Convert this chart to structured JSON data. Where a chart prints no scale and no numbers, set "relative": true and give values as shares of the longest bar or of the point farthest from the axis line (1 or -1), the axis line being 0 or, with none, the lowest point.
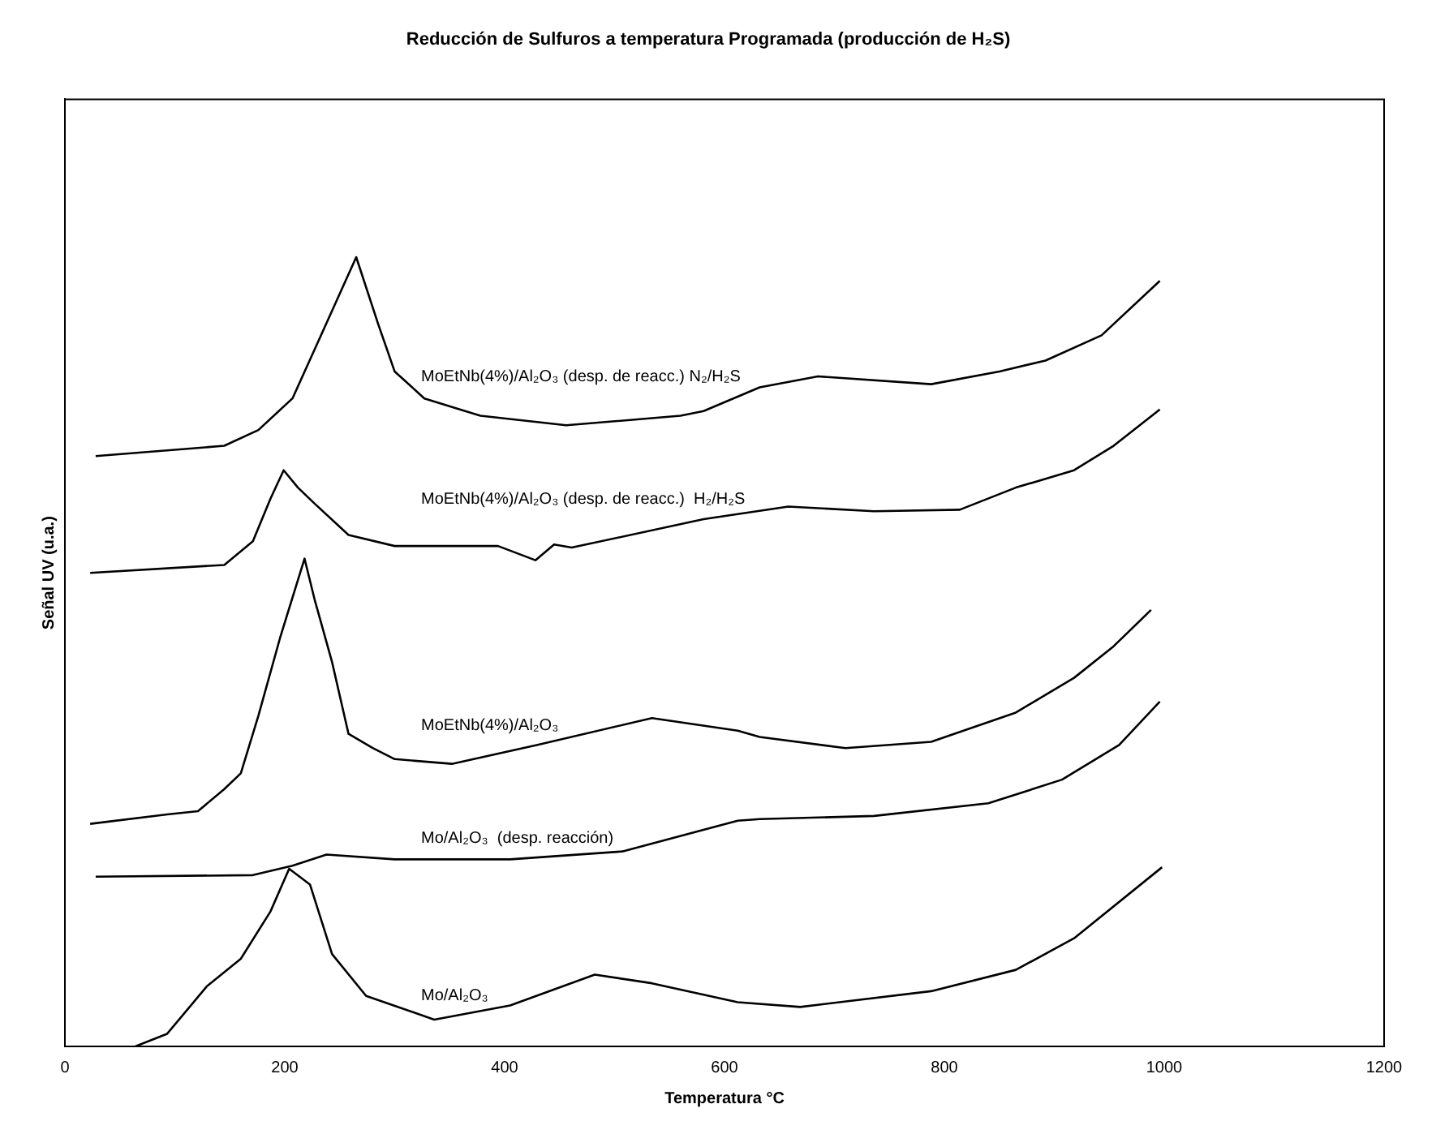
{
  "chart_data": {
    "type": "line",
    "title": "Reducción de Sulfuros a temperatura Programada (producción de H₂S)",
    "xlabel": "Temperatura °C",
    "ylabel": "Señal UV (u.a.)",
    "relative": true,
    "xlim": [
      0,
      1200
    ],
    "xticks": [
      0,
      200,
      400,
      600,
      800,
      1000,
      1200
    ],
    "grid": false,
    "legend": false,
    "marker": "none",
    "line_style": "solid",
    "series": [
      {
        "name": "MoEtNb(4%)/Al₂O₃ (desp. de reacc.) N₂/H₂S",
        "color": "#000000",
        "x": [
          28,
          145,
          176,
          207,
          233,
          265,
          285,
          300,
          327,
          378,
          456,
          560,
          581,
          632,
          685,
          788,
          850,
          892,
          943,
          996
        ],
        "values": [
          0.748,
          0.761,
          0.781,
          0.821,
          0.901,
          1.0,
          0.915,
          0.855,
          0.821,
          0.799,
          0.787,
          0.799,
          0.805,
          0.835,
          0.849,
          0.839,
          0.855,
          0.869,
          0.901,
          0.97
        ]
      },
      {
        "name": "MoEtNb(4%)/Al₂O₃ (desp. de reacc.)  H₂/H₂S",
        "color": "#000000",
        "x": [
          23,
          145,
          171,
          187,
          199,
          212,
          227,
          258,
          300,
          394,
          428,
          445,
          461,
          581,
          658,
          736,
          814,
          865,
          918,
          954,
          996
        ],
        "values": [
          0.6,
          0.61,
          0.64,
          0.694,
          0.73,
          0.708,
          0.688,
          0.648,
          0.634,
          0.634,
          0.616,
          0.636,
          0.632,
          0.668,
          0.684,
          0.678,
          0.68,
          0.708,
          0.73,
          0.761,
          0.807
        ]
      },
      {
        "name": "MoEtNb(4%)/Al₂O₃",
        "color": "#000000",
        "x": [
          23,
          93,
          121,
          145,
          160,
          176,
          196,
          218,
          227,
          243,
          258,
          280,
          300,
          352,
          430,
          534,
          612,
          632,
          710,
          788,
          865,
          918,
          954,
          988
        ],
        "values": [
          0.282,
          0.294,
          0.298,
          0.326,
          0.346,
          0.419,
          0.519,
          0.618,
          0.567,
          0.487,
          0.396,
          0.378,
          0.364,
          0.358,
          0.382,
          0.416,
          0.4,
          0.392,
          0.378,
          0.386,
          0.423,
          0.467,
          0.507,
          0.553
        ]
      },
      {
        "name": "Mo/Al₂O₃  (desp. reacción)",
        "color": "#000000",
        "x": [
          28,
          171,
          207,
          238,
          300,
          405,
          507,
          612,
          632,
          736,
          840,
          907,
          959,
          996
        ],
        "values": [
          0.215,
          0.217,
          0.229,
          0.243,
          0.237,
          0.237,
          0.247,
          0.286,
          0.288,
          0.292,
          0.308,
          0.338,
          0.382,
          0.437
        ]
      },
      {
        "name": "Mo/Al₂O₃",
        "color": "#000000",
        "x": [
          64,
          93,
          129,
          160,
          187,
          204,
          223,
          243,
          274,
          336,
          405,
          482,
          534,
          612,
          669,
          788,
          865,
          918,
          998
        ],
        "values": [
          0,
          0.016,
          0.076,
          0.111,
          0.171,
          0.225,
          0.205,
          0.117,
          0.064,
          0.034,
          0.052,
          0.091,
          0.08,
          0.056,
          0.05,
          0.07,
          0.097,
          0.137,
          0.227
        ]
      }
    ]
  }
}
